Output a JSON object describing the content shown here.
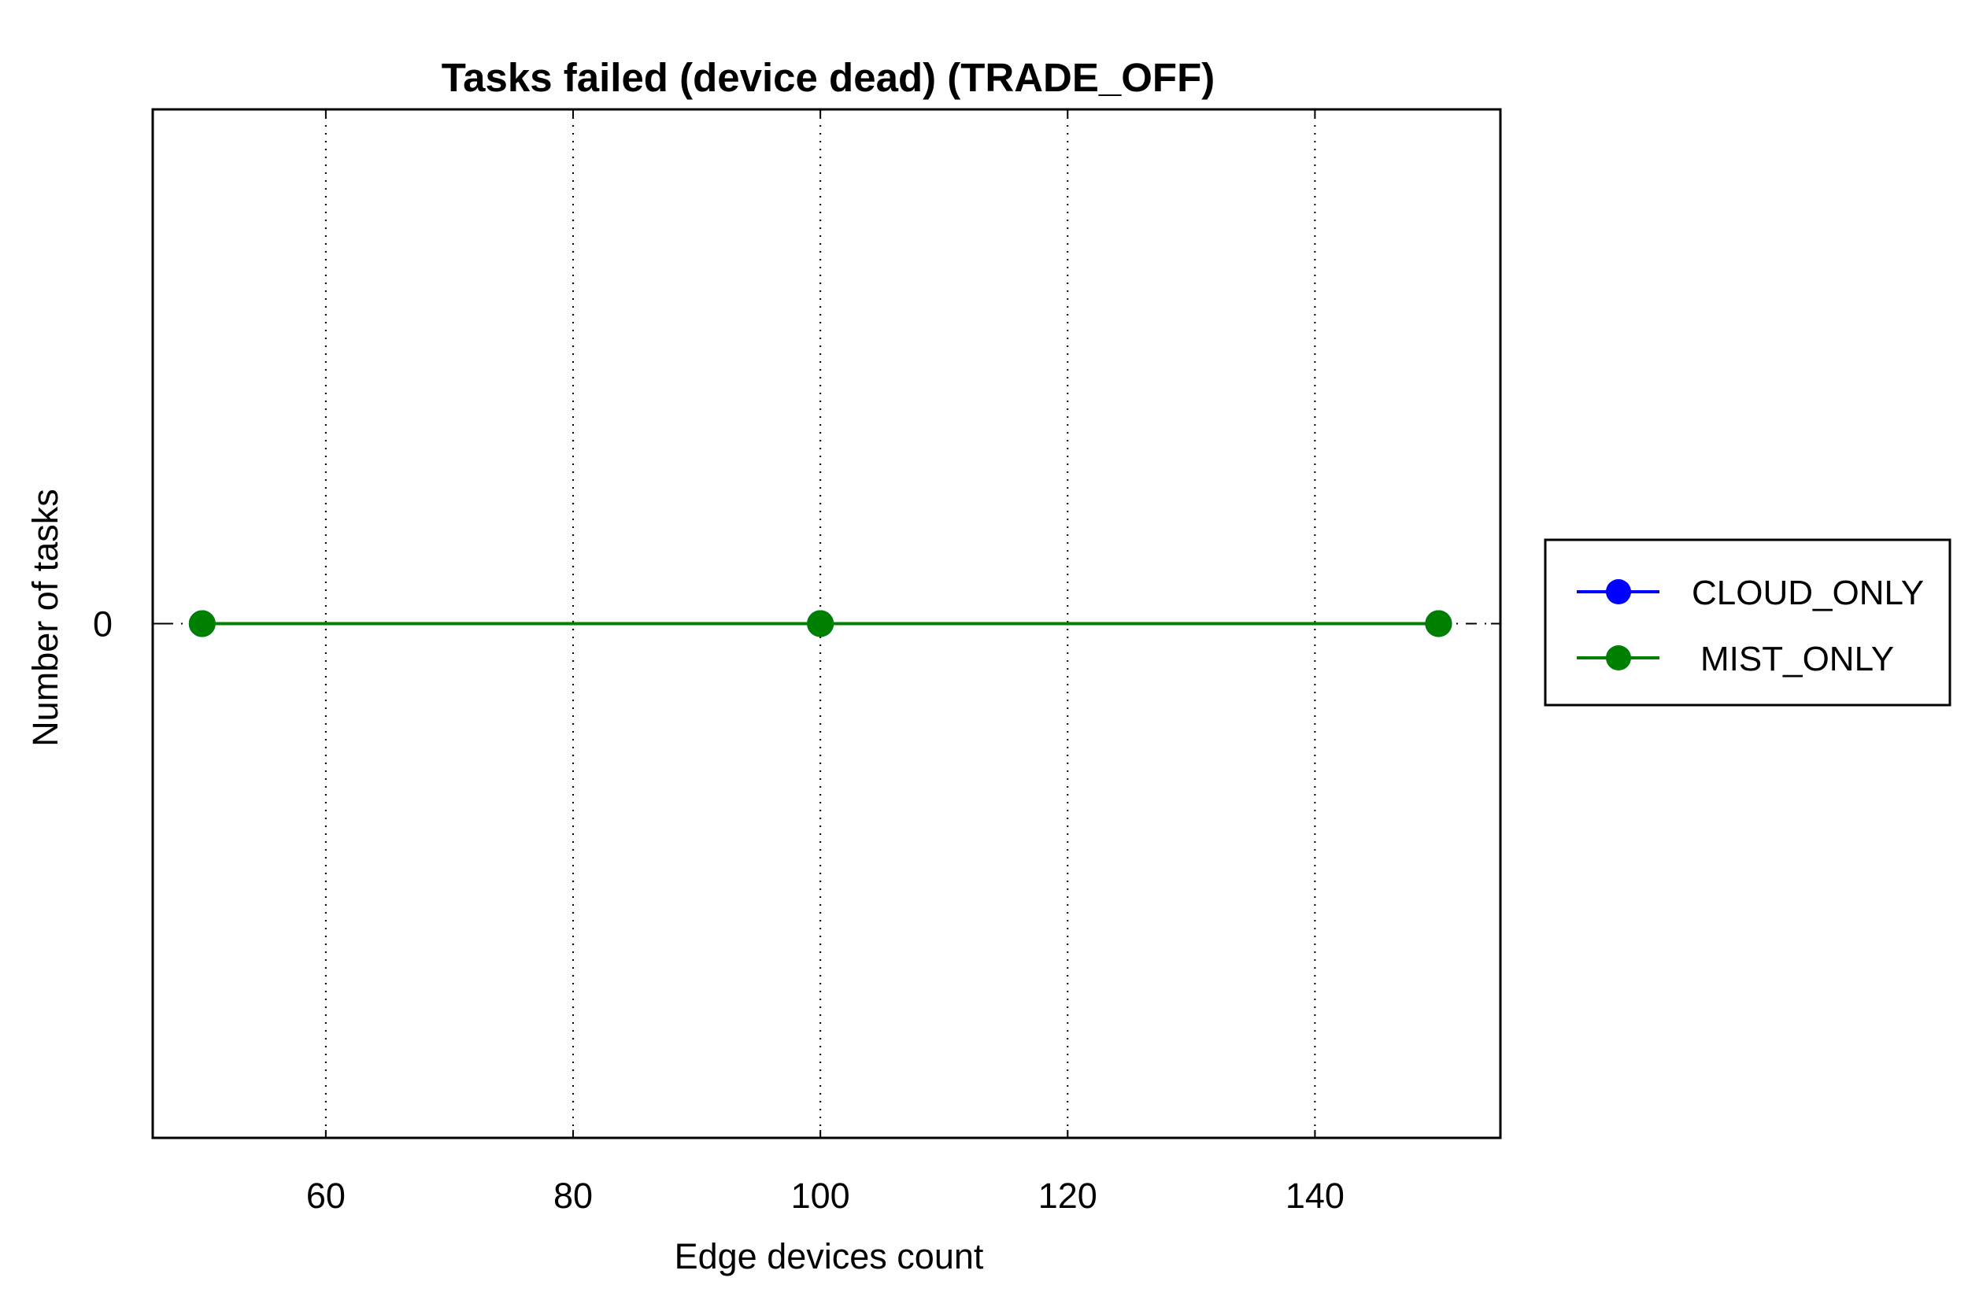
{
  "chart_data": {
    "type": "line",
    "title": "Tasks failed (device dead) (TRADE_OFF)",
    "xlabel": "Edge devices count",
    "ylabel": "Number of tasks",
    "x": [
      50,
      100,
      150
    ],
    "xlim": [
      46,
      155
    ],
    "ylim": [
      -1,
      1
    ],
    "xticks": [
      60,
      80,
      100,
      120,
      140
    ],
    "xtick_labels": [
      "60",
      "80",
      "100",
      "120",
      "140"
    ],
    "yticks": [
      0
    ],
    "ytick_labels": [
      "0"
    ],
    "grid": "vertical dotted",
    "legend_position": "right",
    "series": [
      {
        "name": "CLOUD_ONLY",
        "color": "#0000ff",
        "values": [
          0,
          0,
          0
        ]
      },
      {
        "name": "MIST_ONLY",
        "color": "#008000",
        "values": [
          0,
          0,
          0
        ]
      }
    ]
  }
}
